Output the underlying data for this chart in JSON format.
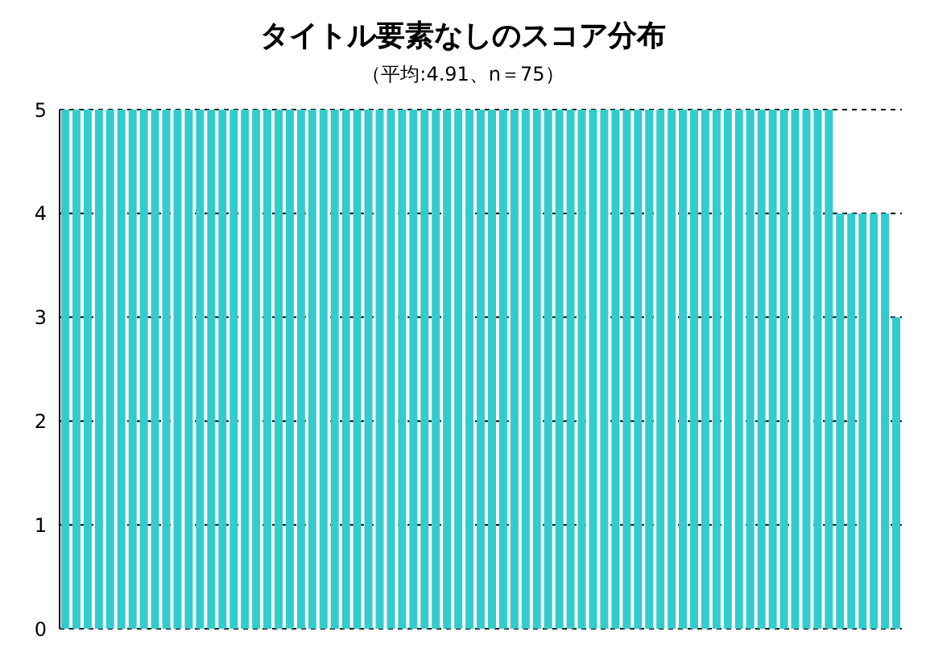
{
  "chart_data": {
    "type": "bar",
    "title": "タイトル要素なしのスコア分布",
    "subtitle": "（平均:4.91、n＝75）",
    "categories": [
      null,
      null,
      null,
      null,
      null,
      null,
      null,
      null,
      null,
      null,
      null,
      null,
      null,
      null,
      null,
      null,
      null,
      null,
      null,
      null,
      null,
      null,
      null,
      null,
      null,
      null,
      null,
      null,
      null,
      null,
      null,
      null,
      null,
      null,
      null,
      null,
      null,
      null,
      null,
      null,
      null,
      null,
      null,
      null,
      null,
      null,
      null,
      null,
      null,
      null,
      null,
      null,
      null,
      null,
      null,
      null,
      null,
      null,
      null,
      null,
      null,
      null,
      null,
      null,
      null,
      null,
      null,
      null,
      null,
      null,
      null,
      null,
      null,
      null,
      null
    ],
    "values": [
      5,
      5,
      5,
      5,
      5,
      5,
      5,
      5,
      5,
      5,
      5,
      5,
      5,
      5,
      5,
      5,
      5,
      5,
      5,
      5,
      5,
      5,
      5,
      5,
      5,
      5,
      5,
      5,
      5,
      5,
      5,
      5,
      5,
      5,
      5,
      5,
      5,
      5,
      5,
      5,
      5,
      5,
      5,
      5,
      5,
      5,
      5,
      5,
      5,
      5,
      5,
      5,
      5,
      5,
      5,
      5,
      5,
      5,
      5,
      5,
      5,
      5,
      5,
      5,
      5,
      5,
      5,
      5,
      5,
      4,
      4,
      4,
      4,
      4,
      3
    ],
    "color": "#33cccc",
    "ylim": [
      0,
      5
    ],
    "yticks": [
      0,
      1,
      2,
      3,
      4,
      5
    ],
    "grid": "y",
    "tick_labels": "y",
    "legend": false
  }
}
